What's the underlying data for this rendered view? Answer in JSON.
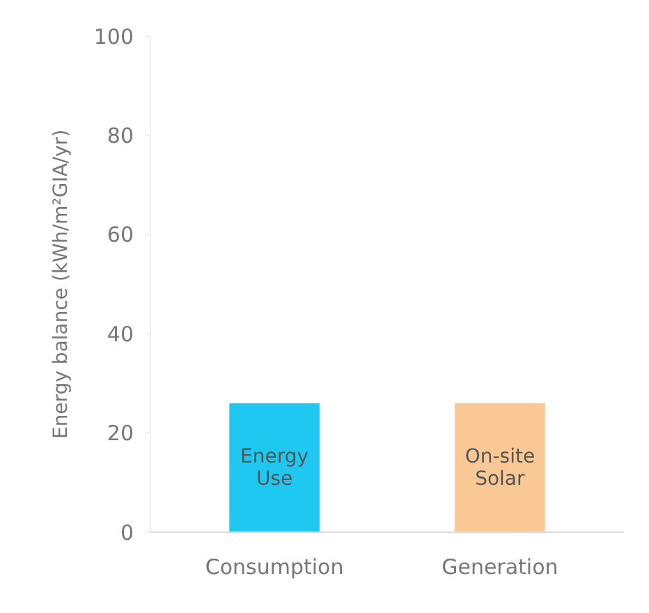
{
  "chart_data": {
    "type": "bar",
    "ylabel": "Energy balance (kWh/m²GIA/yr)",
    "categories": [
      "Consumption",
      "Generation"
    ],
    "values": [
      26,
      26
    ],
    "colors": [
      "#1fc8f0",
      "#f9c895"
    ],
    "ylim": [
      0,
      100
    ],
    "yticks": [
      0,
      20,
      40,
      60,
      80,
      100
    ],
    "grid": false,
    "annotations": [
      "Energy Use",
      "On-site Solar"
    ]
  }
}
